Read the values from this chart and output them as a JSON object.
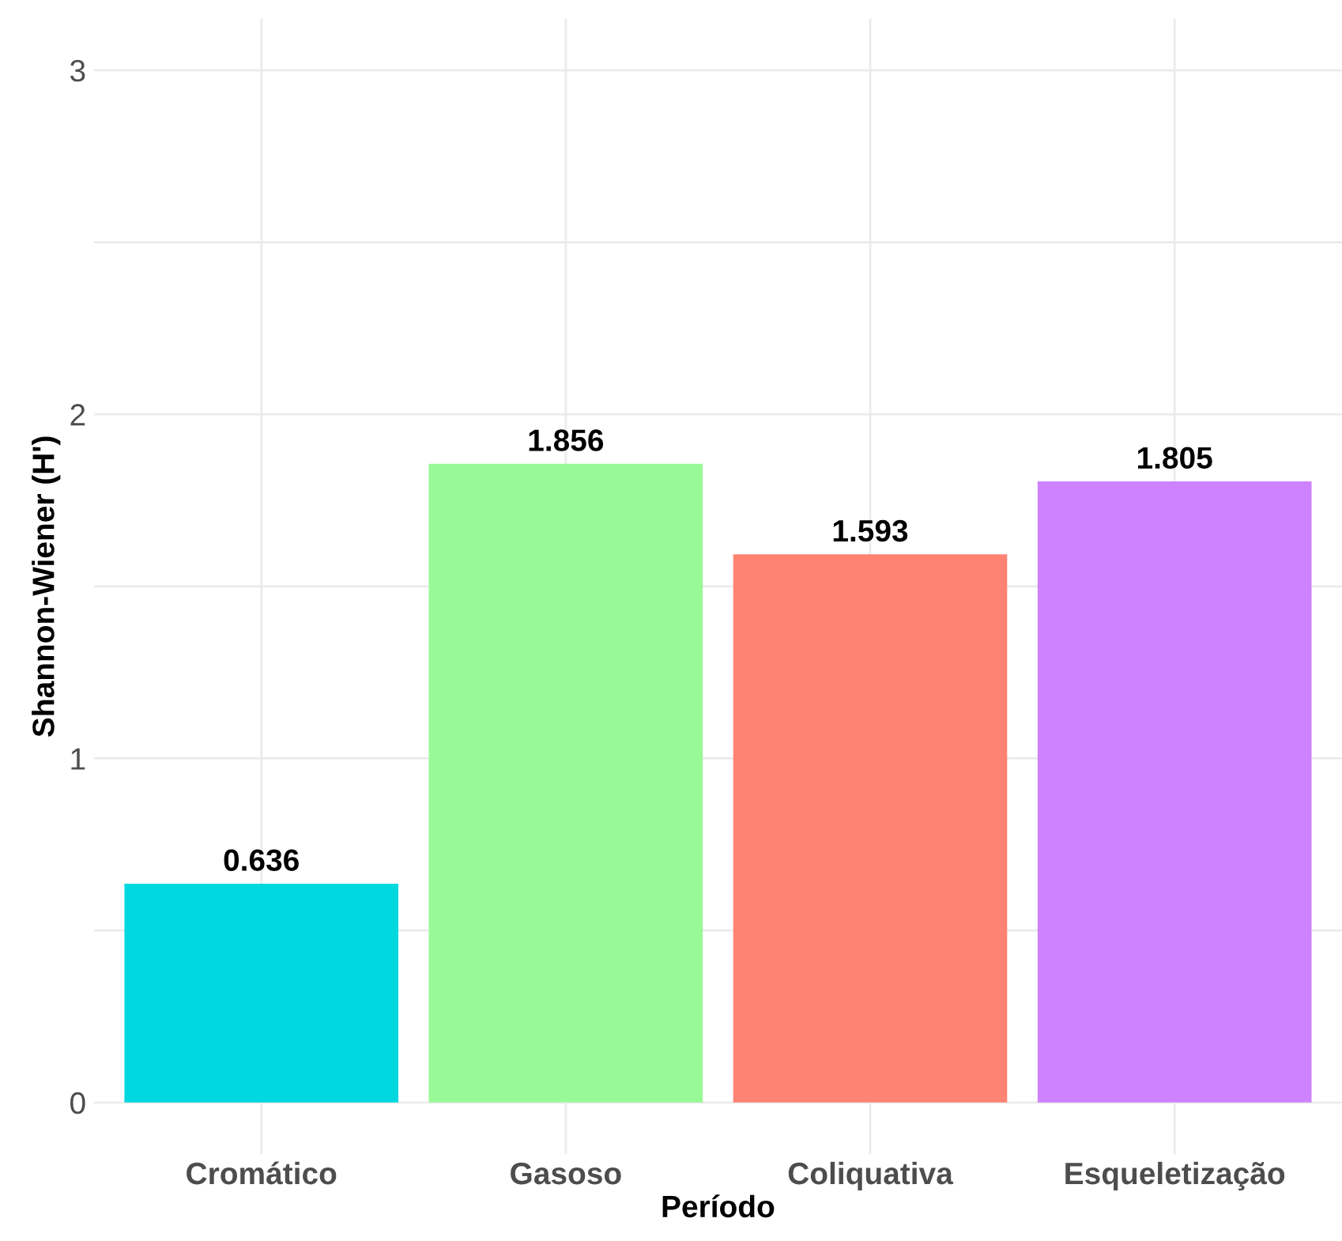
{
  "chart_data": {
    "type": "bar",
    "xlabel": "Período",
    "ylabel": "Shannon-Wiener (H')",
    "categories": [
      "Cromático",
      "Gasoso",
      "Coliquativa",
      "Esqueletização"
    ],
    "values": [
      0.636,
      1.856,
      1.593,
      1.805
    ],
    "colors": [
      "#00d8e0",
      "#99f996",
      "#ff8373",
      "#cf82ff"
    ],
    "ylim": [
      -0.15,
      3.15
    ],
    "yticks": [
      0,
      {
        "value": 0.5,
        "label": null
      },
      1,
      {
        "value": 1.5,
        "label": null
      },
      2,
      {
        "value": 2.5,
        "label": null
      },
      3
    ],
    "grid": true,
    "data_labels": true
  }
}
